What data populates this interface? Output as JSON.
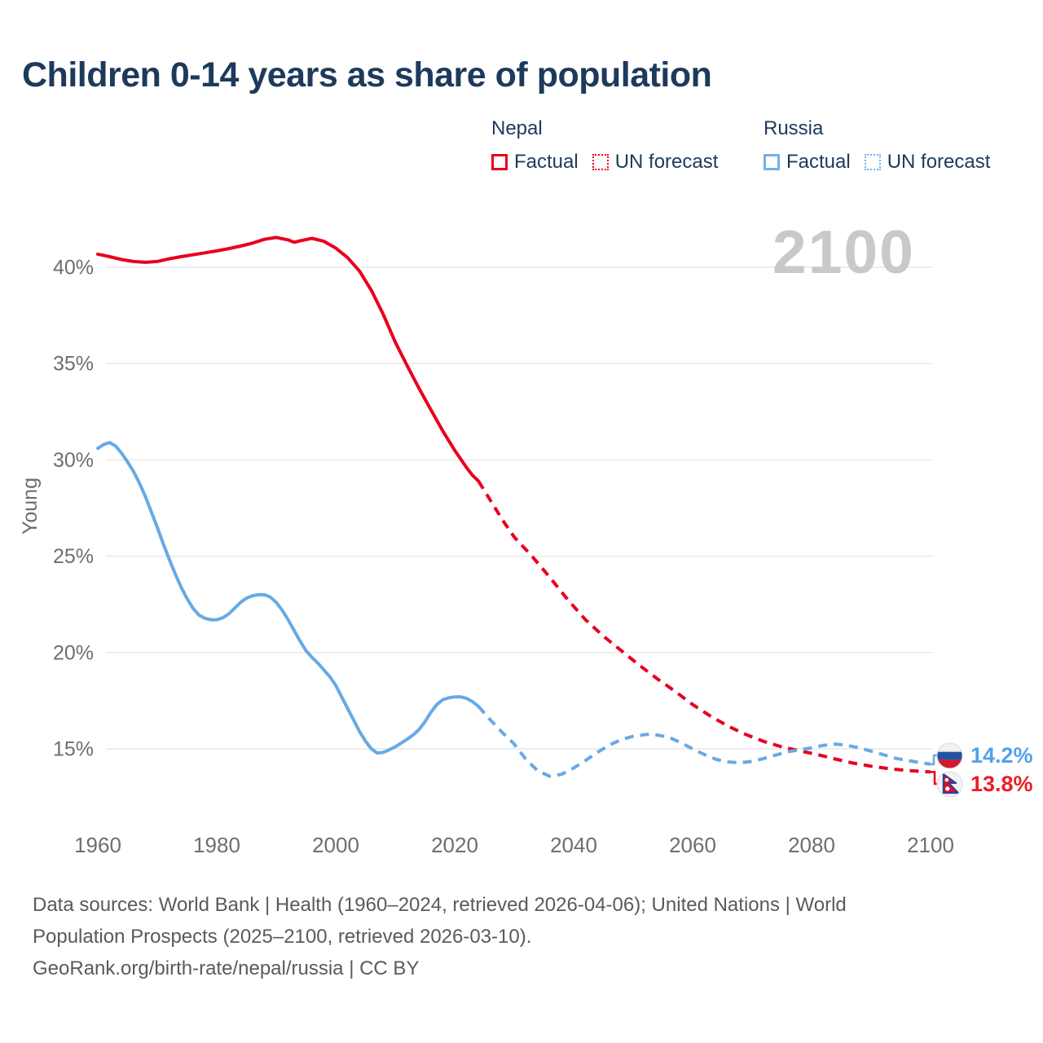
{
  "title": "Children 0-14 years as share of population",
  "watermark": "2100",
  "legend": {
    "groups": [
      {
        "country": "Nepal",
        "factual_label": "Factual",
        "forecast_label": "UN forecast",
        "color": "#e8001d"
      },
      {
        "country": "Russia",
        "factual_label": "Factual",
        "forecast_label": "UN forecast",
        "color": "#74b0ea"
      }
    ]
  },
  "footer": {
    "line1": "Data sources: World Bank | Health (1960–2024, retrieved 2026-04-06); United Nations | World",
    "line2": "Population Prospects (2025–2100, retrieved 2026-03-10).",
    "line3": "GeoRank.org/birth-rate/nepal/russia | CC BY"
  },
  "chart_data": {
    "type": "line",
    "title": "Children 0-14 years as share of population",
    "xlabel": "",
    "ylabel": "Young",
    "x_ticks": [
      1960,
      1980,
      2000,
      2020,
      2040,
      2060,
      2080,
      2100
    ],
    "y_ticks": [
      {
        "label": "40%",
        "value": 40
      },
      {
        "label": "35%",
        "value": 35
      },
      {
        "label": "30%",
        "value": 30
      },
      {
        "label": "25%",
        "value": 25
      },
      {
        "label": "20%",
        "value": 20
      },
      {
        "label": "15%",
        "value": 15
      }
    ],
    "xlim": [
      1960,
      2100
    ],
    "ylim": [
      13,
      43
    ],
    "grid": "horizontal",
    "legend_position": "top-right",
    "colors": {
      "nepal": "#e8001d",
      "russia": "#68a9e6"
    },
    "series": [
      {
        "name": "Nepal Factual",
        "style": "solid",
        "color": "#e8001d",
        "points": [
          [
            1960,
            40.68
          ],
          [
            1962,
            40.55
          ],
          [
            1964,
            40.4
          ],
          [
            1966,
            40.3
          ],
          [
            1968,
            40.26
          ],
          [
            1970,
            40.3
          ],
          [
            1972,
            40.44
          ],
          [
            1974,
            40.55
          ],
          [
            1976,
            40.65
          ],
          [
            1978,
            40.75
          ],
          [
            1980,
            40.85
          ],
          [
            1982,
            40.97
          ],
          [
            1984,
            41.1
          ],
          [
            1986,
            41.25
          ],
          [
            1988,
            41.45
          ],
          [
            1990,
            41.55
          ],
          [
            1992,
            41.42
          ],
          [
            1993,
            41.3
          ],
          [
            1994,
            41.37
          ],
          [
            1996,
            41.5
          ],
          [
            1998,
            41.35
          ],
          [
            2000,
            41.0
          ],
          [
            2002,
            40.5
          ],
          [
            2004,
            39.8
          ],
          [
            2006,
            38.8
          ],
          [
            2008,
            37.55
          ],
          [
            2010,
            36.12
          ],
          [
            2012,
            34.9
          ],
          [
            2014,
            33.72
          ],
          [
            2016,
            32.6
          ],
          [
            2018,
            31.5
          ],
          [
            2020,
            30.5
          ],
          [
            2022,
            29.6
          ],
          [
            2023,
            29.2
          ],
          [
            2024,
            28.9
          ]
        ]
      },
      {
        "name": "Nepal UN forecast",
        "style": "dashed",
        "color": "#e8001d",
        "points": [
          [
            2024,
            28.9
          ],
          [
            2026,
            27.9
          ],
          [
            2028,
            26.9
          ],
          [
            2030,
            26.0
          ],
          [
            2033,
            25.0
          ],
          [
            2036,
            23.9
          ],
          [
            2039,
            22.75
          ],
          [
            2042,
            21.7
          ],
          [
            2045,
            20.85
          ],
          [
            2048,
            20.1
          ],
          [
            2051,
            19.35
          ],
          [
            2054,
            18.65
          ],
          [
            2057,
            18.0
          ],
          [
            2060,
            17.3
          ],
          [
            2063,
            16.7
          ],
          [
            2066,
            16.17
          ],
          [
            2069,
            15.74
          ],
          [
            2072,
            15.38
          ],
          [
            2075,
            15.1
          ],
          [
            2078,
            14.9
          ],
          [
            2081,
            14.7
          ],
          [
            2084,
            14.47
          ],
          [
            2087,
            14.26
          ],
          [
            2090,
            14.1
          ],
          [
            2093,
            13.97
          ],
          [
            2096,
            13.88
          ],
          [
            2100,
            13.8
          ]
        ]
      },
      {
        "name": "Russia Factual",
        "style": "solid",
        "color": "#68a9e6",
        "points": [
          [
            1960,
            30.6
          ],
          [
            1961,
            30.8
          ],
          [
            1962,
            30.9
          ],
          [
            1963,
            30.72
          ],
          [
            1964,
            30.35
          ],
          [
            1965,
            29.9
          ],
          [
            1966,
            29.4
          ],
          [
            1967,
            28.8
          ],
          [
            1968,
            28.1
          ],
          [
            1969,
            27.3
          ],
          [
            1970,
            26.5
          ],
          [
            1971,
            25.65
          ],
          [
            1972,
            24.85
          ],
          [
            1973,
            24.1
          ],
          [
            1974,
            23.4
          ],
          [
            1975,
            22.8
          ],
          [
            1976,
            22.3
          ],
          [
            1977,
            21.95
          ],
          [
            1978,
            21.78
          ],
          [
            1979,
            21.7
          ],
          [
            1980,
            21.7
          ],
          [
            1981,
            21.8
          ],
          [
            1982,
            22.0
          ],
          [
            1983,
            22.3
          ],
          [
            1984,
            22.6
          ],
          [
            1985,
            22.82
          ],
          [
            1986,
            22.95
          ],
          [
            1987,
            23.0
          ],
          [
            1988,
            23.0
          ],
          [
            1989,
            22.88
          ],
          [
            1990,
            22.6
          ],
          [
            1991,
            22.2
          ],
          [
            1992,
            21.7
          ],
          [
            1993,
            21.15
          ],
          [
            1994,
            20.6
          ],
          [
            1995,
            20.1
          ],
          [
            1996,
            19.75
          ],
          [
            1997,
            19.45
          ],
          [
            1998,
            19.1
          ],
          [
            1999,
            18.75
          ],
          [
            2000,
            18.3
          ],
          [
            2001,
            17.7
          ],
          [
            2002,
            17.1
          ],
          [
            2003,
            16.5
          ],
          [
            2004,
            15.9
          ],
          [
            2005,
            15.4
          ],
          [
            2006,
            15.0
          ],
          [
            2007,
            14.78
          ],
          [
            2008,
            14.82
          ],
          [
            2009,
            14.95
          ],
          [
            2010,
            15.1
          ],
          [
            2011,
            15.3
          ],
          [
            2012,
            15.5
          ],
          [
            2013,
            15.72
          ],
          [
            2014,
            16.0
          ],
          [
            2015,
            16.4
          ],
          [
            2016,
            16.9
          ],
          [
            2017,
            17.3
          ],
          [
            2018,
            17.55
          ],
          [
            2019,
            17.65
          ],
          [
            2020,
            17.7
          ],
          [
            2021,
            17.7
          ],
          [
            2022,
            17.62
          ],
          [
            2023,
            17.45
          ],
          [
            2024,
            17.2
          ]
        ]
      },
      {
        "name": "Russia UN forecast",
        "style": "dashed",
        "color": "#68a9e6",
        "points": [
          [
            2024,
            17.2
          ],
          [
            2026,
            16.5
          ],
          [
            2028,
            15.85
          ],
          [
            2030,
            15.25
          ],
          [
            2032,
            14.45
          ],
          [
            2034,
            13.85
          ],
          [
            2036,
            13.58
          ],
          [
            2038,
            13.68
          ],
          [
            2040,
            14.0
          ],
          [
            2042,
            14.4
          ],
          [
            2044,
            14.82
          ],
          [
            2046,
            15.2
          ],
          [
            2048,
            15.48
          ],
          [
            2050,
            15.65
          ],
          [
            2053,
            15.78
          ],
          [
            2056,
            15.6
          ],
          [
            2058,
            15.32
          ],
          [
            2060,
            15.0
          ],
          [
            2062,
            14.7
          ],
          [
            2064,
            14.45
          ],
          [
            2066,
            14.32
          ],
          [
            2068,
            14.28
          ],
          [
            2070,
            14.35
          ],
          [
            2072,
            14.5
          ],
          [
            2074,
            14.68
          ],
          [
            2076,
            14.85
          ],
          [
            2078,
            14.95
          ],
          [
            2080,
            15.05
          ],
          [
            2082,
            15.18
          ],
          [
            2084,
            15.25
          ],
          [
            2086,
            15.18
          ],
          [
            2088,
            15.05
          ],
          [
            2090,
            14.88
          ],
          [
            2092,
            14.7
          ],
          [
            2094,
            14.52
          ],
          [
            2096,
            14.4
          ],
          [
            2098,
            14.3
          ],
          [
            2100,
            14.2
          ]
        ]
      }
    ],
    "end_labels": [
      {
        "country": "Russia",
        "value": "14.2%",
        "year": 2100,
        "color": "#54a1e8",
        "flag": "russia-flag"
      },
      {
        "country": "Nepal",
        "value": "13.8%",
        "year": 2100,
        "color": "#ed1c24",
        "flag": "nepal-flag"
      }
    ]
  }
}
